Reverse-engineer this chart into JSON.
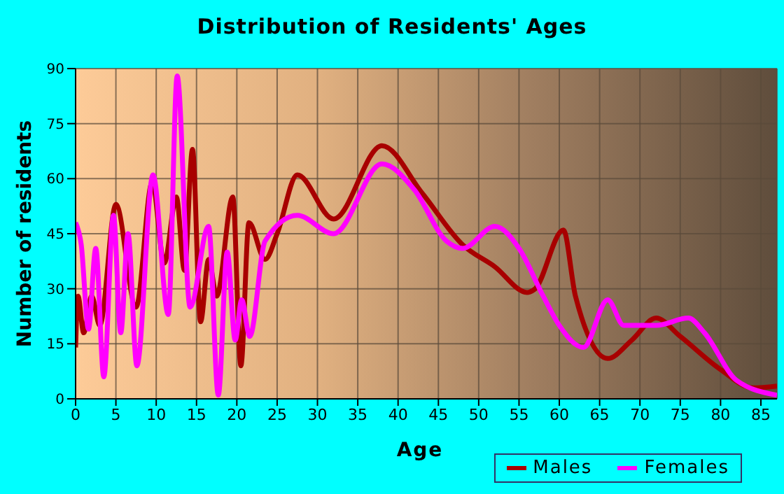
{
  "chart_data": {
    "type": "line",
    "title": "Distribution of Residents' Ages",
    "xlabel": "Age",
    "ylabel": "Number of residents",
    "xlim": [
      0,
      87
    ],
    "xticks": [
      0,
      5,
      10,
      15,
      20,
      25,
      30,
      35,
      40,
      45,
      50,
      55,
      60,
      65,
      70,
      75,
      80,
      85
    ],
    "ylim": [
      0,
      90
    ],
    "yticks": [
      0,
      15,
      30,
      45,
      60,
      75,
      90
    ],
    "grid": true,
    "legend": "bottom right",
    "marker": "none",
    "line_style": "solid",
    "series": [
      {
        "name": "Males",
        "color": "#a80000",
        "x": [
          0,
          0.3,
          1,
          2,
          3,
          5,
          7.5,
          9.5,
          11,
          12.5,
          13.5,
          14.5,
          15.5,
          16.5,
          17.5,
          19.5,
          20.5,
          21.5,
          23.5,
          25,
          27.5,
          32,
          38,
          43,
          48,
          52,
          56,
          57,
          60.5,
          62,
          66,
          69,
          72,
          75,
          80,
          84,
          87
        ],
        "values": [
          14,
          28,
          18,
          28,
          20,
          53,
          25,
          59,
          37,
          55,
          35,
          68,
          21,
          38,
          28,
          55,
          9,
          48,
          38,
          45,
          61,
          49,
          69,
          56,
          42,
          36,
          29,
          30,
          46,
          28,
          11,
          16,
          22,
          17,
          8,
          3,
          3.5
        ]
      },
      {
        "name": "Females",
        "color": "#ff00ff",
        "x": [
          0,
          0.7,
          1.6,
          2.5,
          3.5,
          4.7,
          5.6,
          6.5,
          7.6,
          9.6,
          11.5,
          12.6,
          14.2,
          16.5,
          17.7,
          18.8,
          19.8,
          20.6,
          21.6,
          23.5,
          27.5,
          32,
          38,
          42,
          46,
          48,
          52,
          55,
          58,
          60,
          63,
          66,
          68,
          72,
          76,
          78,
          82,
          87
        ],
        "values": [
          48,
          42,
          19,
          41,
          6,
          50,
          18,
          45,
          9,
          61,
          23,
          88,
          25,
          47,
          1,
          40,
          16,
          27,
          17,
          43,
          50,
          45,
          64,
          57,
          43,
          41,
          47,
          41,
          28,
          20,
          14,
          27,
          20,
          20,
          22,
          18,
          5,
          1
        ]
      }
    ]
  }
}
